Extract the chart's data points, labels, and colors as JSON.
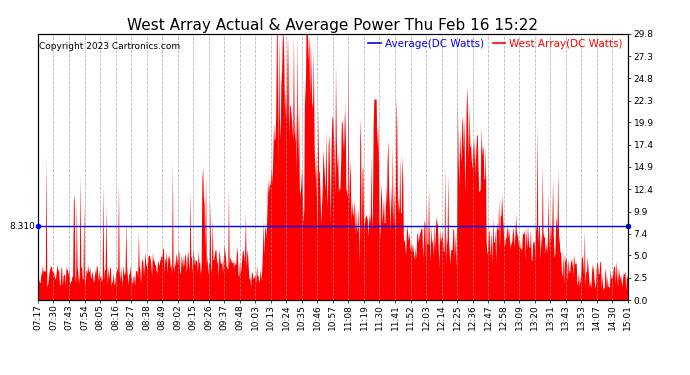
{
  "title": "West Array Actual & Average Power Thu Feb 16 15:22",
  "copyright": "Copyright 2023 Cartronics.com",
  "legend_average": "Average(DC Watts)",
  "legend_west": "West Array(DC Watts)",
  "legend_avg_color": "blue",
  "legend_west_color": "red",
  "ylabel_right_values": [
    0.0,
    2.5,
    5.0,
    7.4,
    9.9,
    12.4,
    14.9,
    17.4,
    19.9,
    22.3,
    24.8,
    27.3,
    29.8
  ],
  "ymin": 0.0,
  "ymax": 29.8,
  "average_line_value": 8.31,
  "average_label": "8.310",
  "background_color": "#ffffff",
  "plot_bg_color": "#ffffff",
  "grid_color": "#999999",
  "grid_style": "--",
  "bar_color": "red",
  "avg_line_color": "blue",
  "title_fontsize": 11,
  "tick_fontsize": 6.5,
  "copyright_fontsize": 6.5,
  "legend_fontsize": 7.5,
  "time_labels": [
    "07:17",
    "07:30",
    "07:43",
    "07:54",
    "08:05",
    "08:16",
    "08:27",
    "08:38",
    "08:49",
    "09:02",
    "09:15",
    "09:26",
    "09:37",
    "09:48",
    "10:03",
    "10:13",
    "10:24",
    "10:35",
    "10:46",
    "10:57",
    "11:08",
    "11:19",
    "11:30",
    "11:41",
    "11:52",
    "12:03",
    "12:14",
    "12:25",
    "12:36",
    "12:47",
    "12:58",
    "13:09",
    "13:20",
    "13:31",
    "13:43",
    "13:53",
    "14:07",
    "14:30",
    "15:01"
  ]
}
